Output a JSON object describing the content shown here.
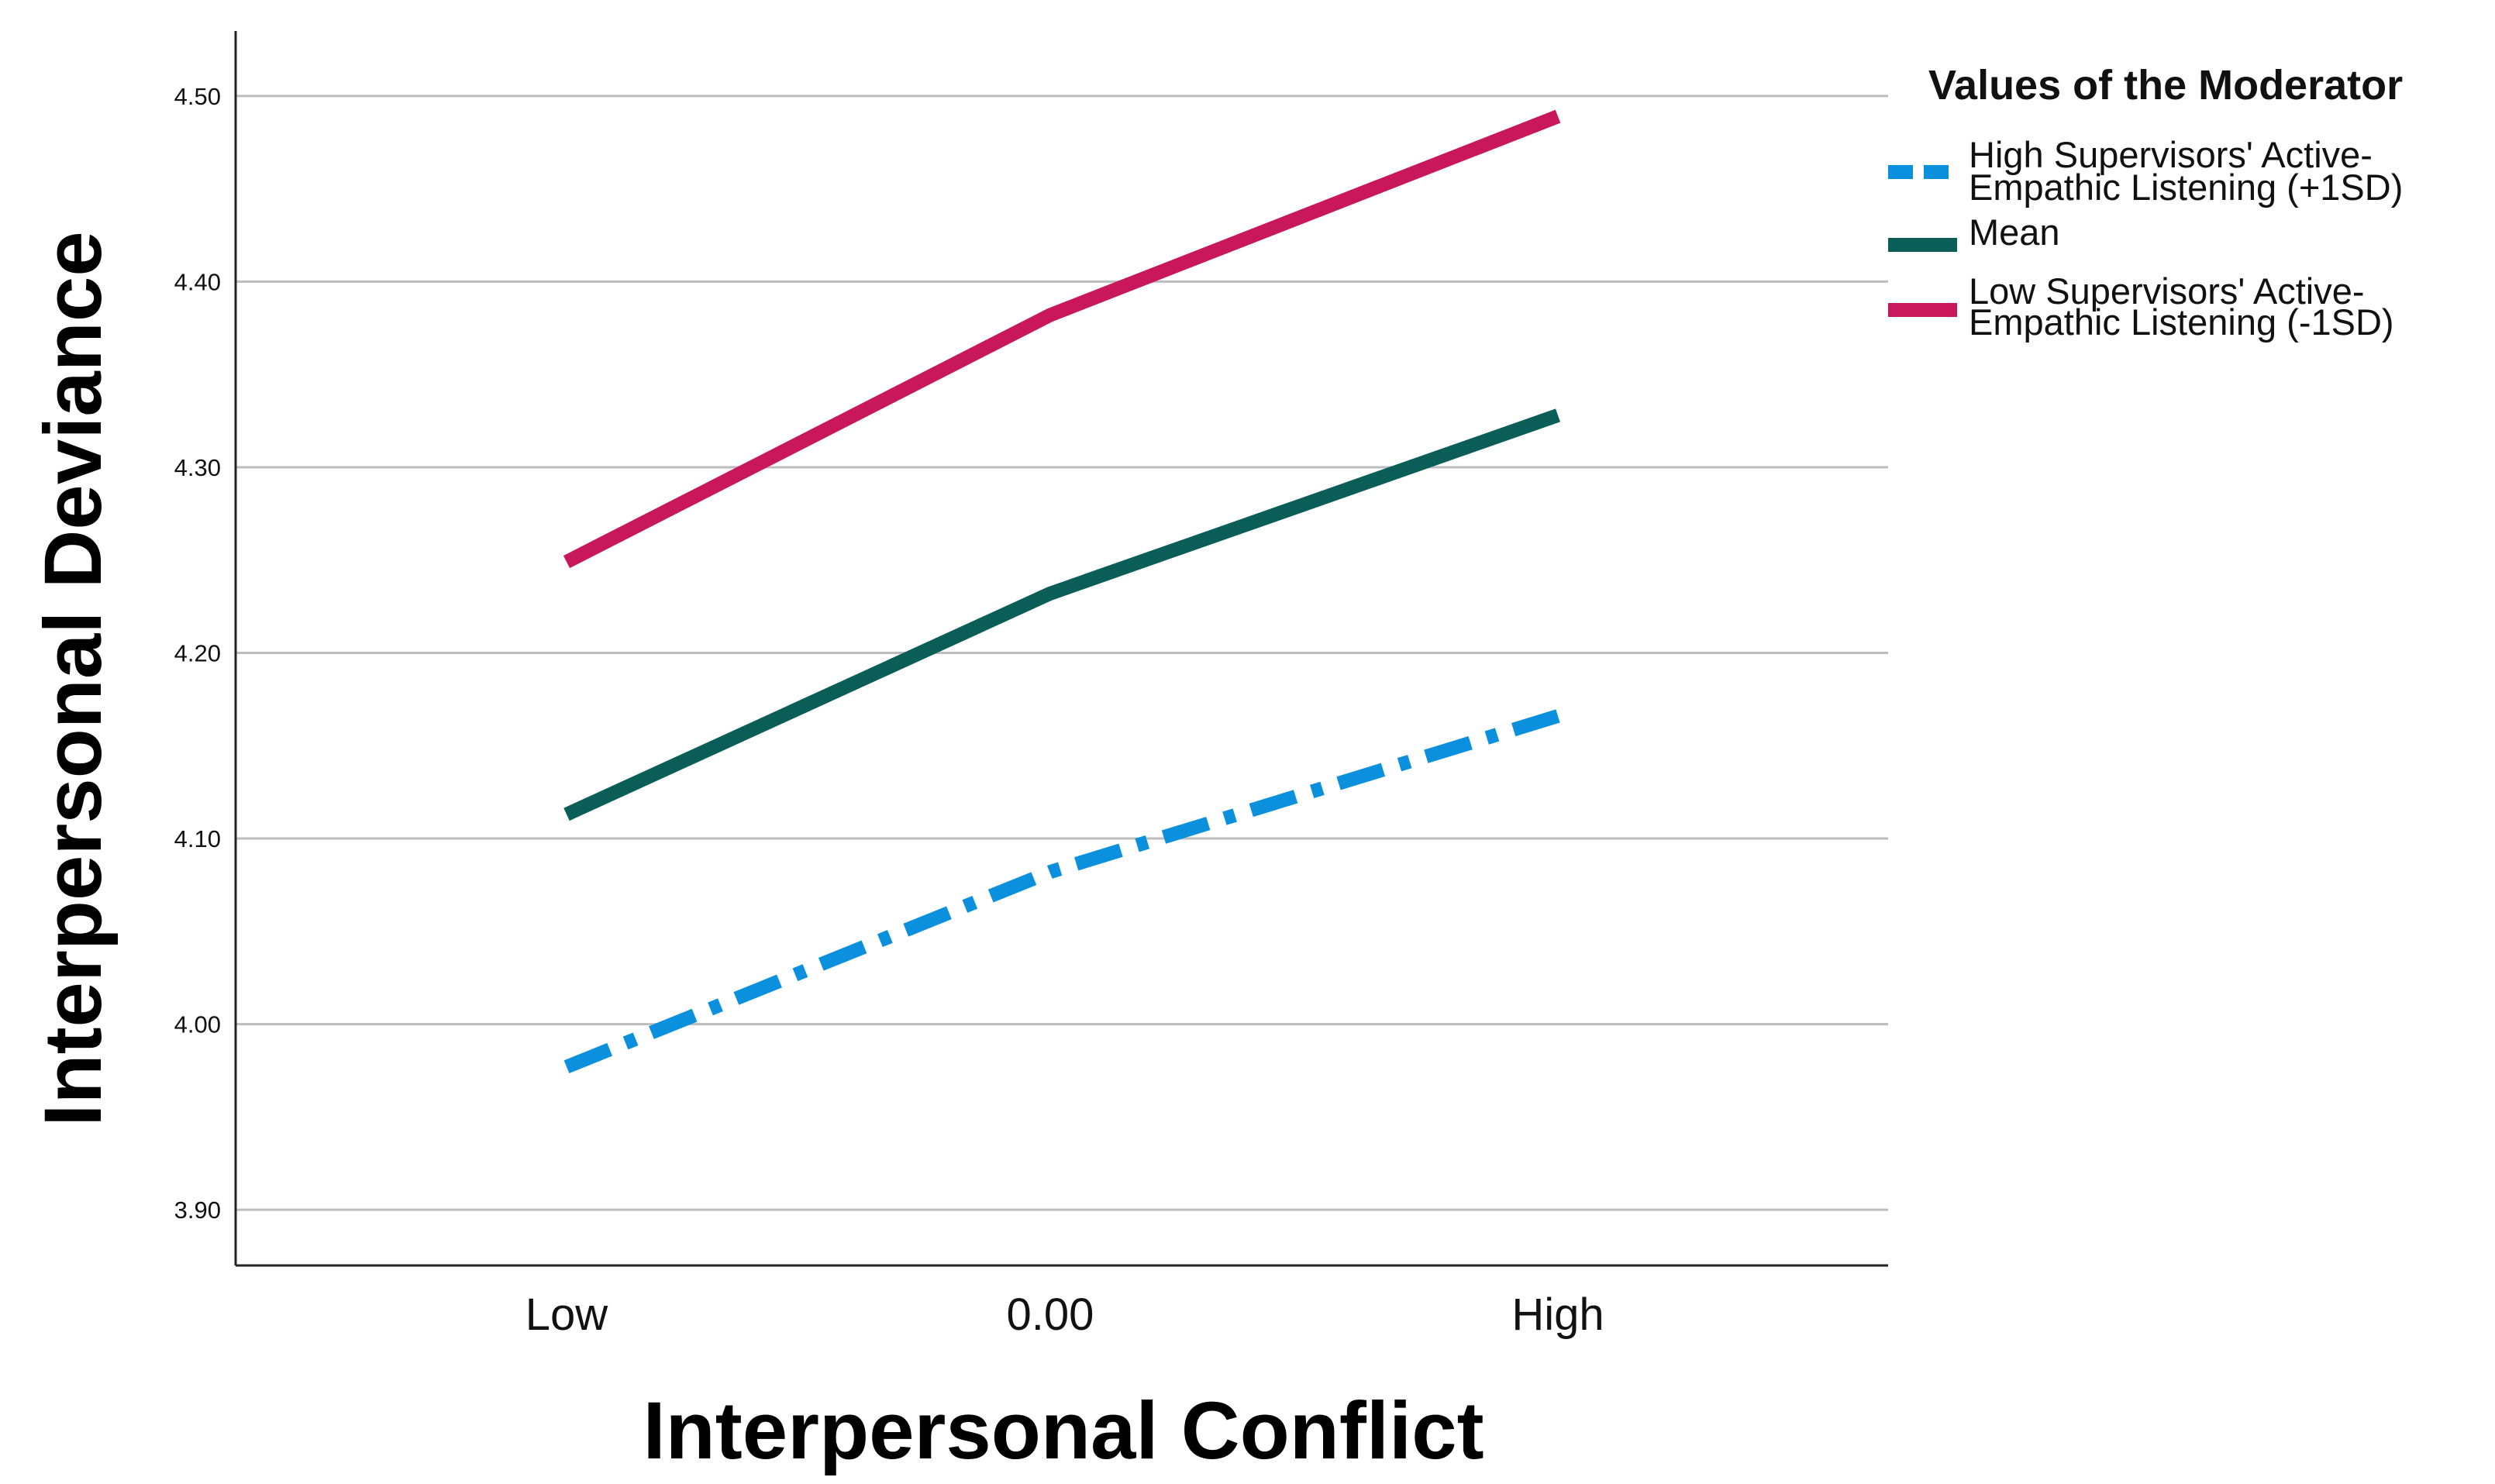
{
  "chart_data": {
    "type": "line",
    "title": "",
    "xlabel": "Interpersonal Conflict",
    "ylabel": "Interpersonal Deviance",
    "categories": [
      "Low",
      "0.00",
      "High"
    ],
    "ylim": [
      3.87,
      4.535
    ],
    "yticks": [
      "3.90",
      "4.00",
      "4.10",
      "4.20",
      "4.30",
      "4.40",
      "4.50"
    ],
    "grid": true,
    "legend_title": "Values of the Moderator",
    "legend_position": "right",
    "series": [
      {
        "name_lines": [
          "High Supervisors' Active-",
          "Empathic Listening (+1SD)"
        ],
        "values": [
          3.977,
          4.082,
          4.166
        ],
        "color": "#0a90dd",
        "style": "dash-dot"
      },
      {
        "name_lines": [
          "Mean"
        ],
        "values": [
          4.113,
          4.232,
          4.328
        ],
        "color": "#0b5e58",
        "style": "solid"
      },
      {
        "name_lines": [
          "Low Supervisors' Active-",
          "Empathic Listening (-1SD)"
        ],
        "values": [
          4.249,
          4.382,
          4.489
        ],
        "color": "#c8175a",
        "style": "solid"
      }
    ]
  }
}
